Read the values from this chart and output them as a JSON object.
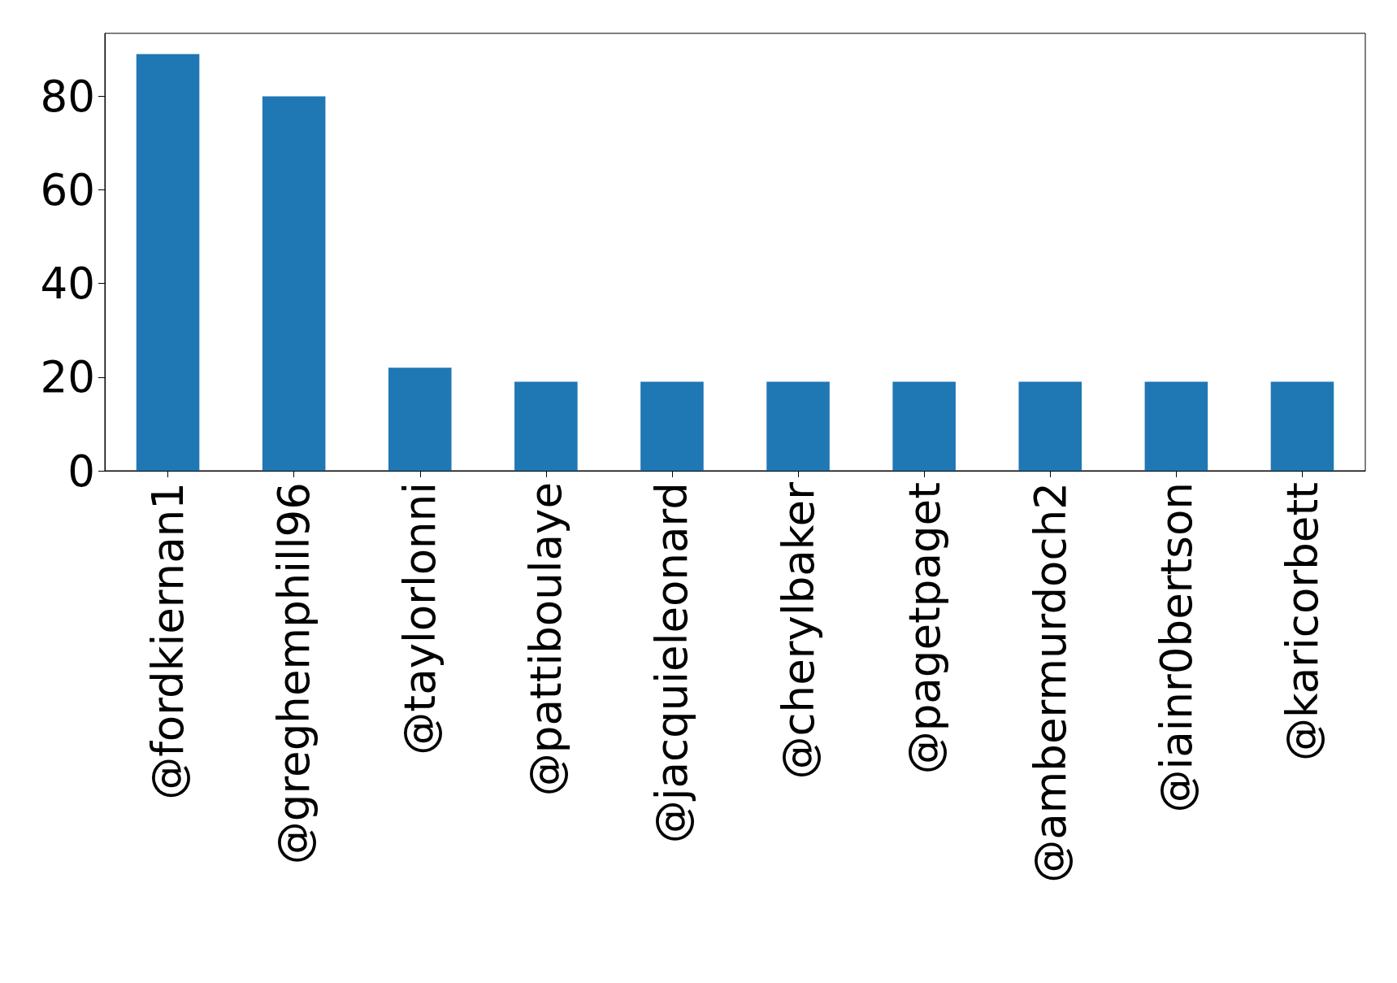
{
  "chart_data": {
    "type": "bar",
    "categories": [
      "@fordkiernan1",
      "@greghemphill96",
      "@taylorlonni",
      "@pattiboulaye",
      "@jacquieleonard",
      "@cherylbaker",
      "@pagetpaget",
      "@ambermurdoch2",
      "@iainr0bertson",
      "@karicorbett"
    ],
    "values": [
      89,
      80,
      22,
      19,
      19,
      19,
      19,
      19,
      19,
      19
    ],
    "color": "#1f77b4",
    "ylim": [
      0,
      93.45
    ],
    "yticks": [
      0,
      20,
      40,
      60,
      80
    ],
    "grid": false
  }
}
